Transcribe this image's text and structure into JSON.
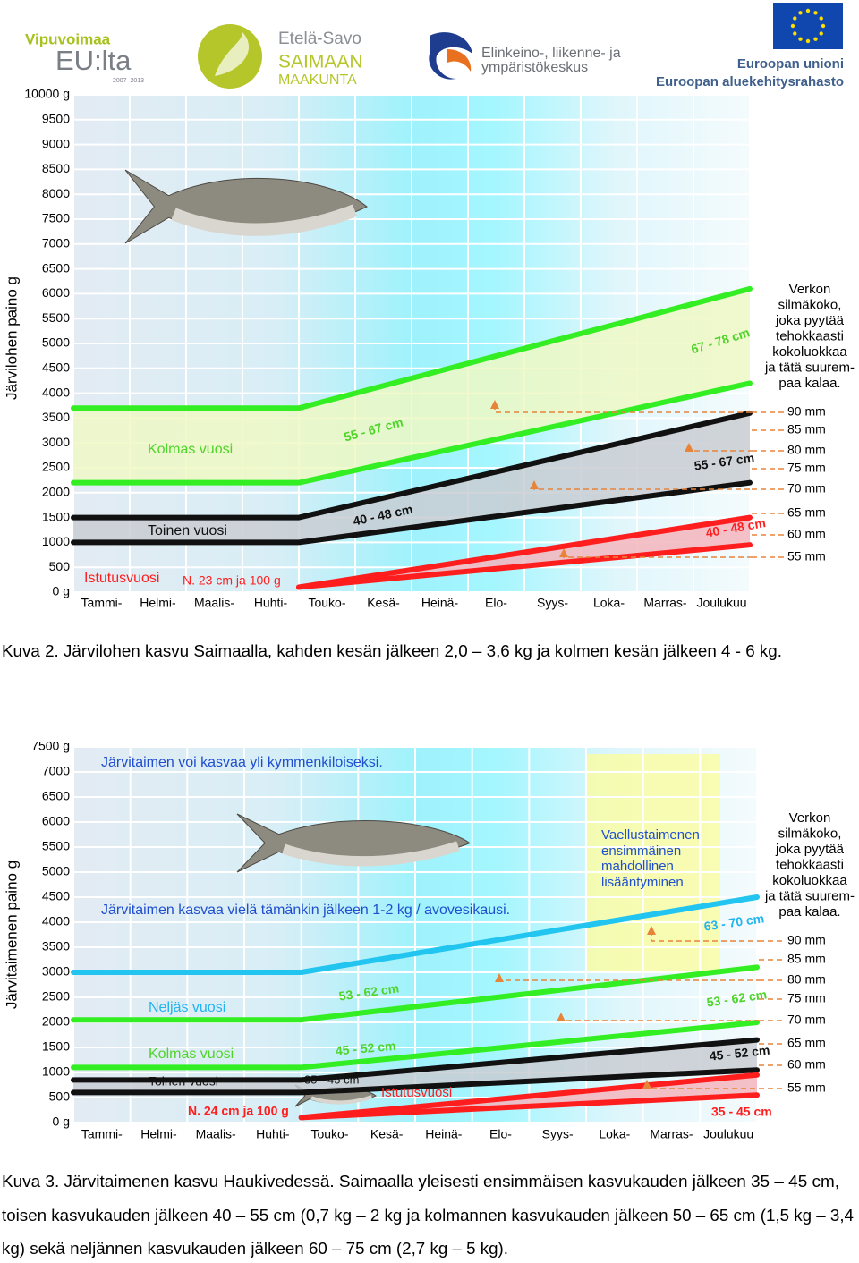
{
  "logos": {
    "vipuvoimaa": "Vipuvoimaa",
    "eu_lta": "EU:lta",
    "years": "2007–2013",
    "etela_savo": "Etelä-Savo",
    "saimaan": "SAIMAAN",
    "maakunta": "MAAKUNTA",
    "ely": [
      "Elinkeino-, liikenne- ja",
      "ympäristökeskus"
    ],
    "eu": [
      "Euroopan unioni",
      "Euroopan aluekehitysrahasto"
    ]
  },
  "chart_data": [
    {
      "type": "line",
      "y_label": "Järvilohen paino g",
      "ylim": [
        0,
        10000
      ],
      "yticks": [
        {
          "value": 0,
          "label": "0 g"
        },
        500,
        1000,
        1500,
        2000,
        2500,
        3000,
        3500,
        4000,
        4500,
        5000,
        5500,
        6000,
        6500,
        7000,
        7500,
        8000,
        8500,
        9000,
        9500,
        {
          "value": 10000,
          "label": "10000 g"
        }
      ],
      "xlim": [
        0,
        12
      ],
      "categories": [
        "Tammi-",
        "Helmi-",
        "Maalis-",
        "Huhti-",
        "Touko-",
        "Kesä-",
        "Heinä-",
        "Elo-",
        "Syys-",
        "Loka-",
        "Marras-",
        "Joulukuu"
      ],
      "grid": true,
      "series": [
        {
          "color": "#33ee22",
          "x": [
            0,
            4,
            12
          ],
          "values": [
            3700,
            3700,
            6100
          ],
          "band_color": "#eef8c4"
        },
        {
          "color": "#33ee22",
          "x": [
            0,
            4,
            12
          ],
          "values": [
            2200,
            2200,
            4200
          ]
        },
        {
          "color": "#111111",
          "x": [
            0,
            4,
            12
          ],
          "values": [
            1500,
            1500,
            3600
          ],
          "band_color": "#c9cdd2"
        },
        {
          "color": "#111111",
          "x": [
            0,
            4,
            12
          ],
          "values": [
            1000,
            1000,
            2200
          ]
        },
        {
          "color": "#ff1e1e",
          "x": [
            4,
            12
          ],
          "values": [
            100,
            1500
          ],
          "band_color": "#f4b5bd"
        },
        {
          "color": "#ff1e1e",
          "x": [
            4,
            12
          ],
          "values": [
            100,
            950
          ]
        }
      ],
      "annotations": [
        {
          "text": "Kolmas vuosi",
          "color": "#4fd42a"
        },
        {
          "text": "55 - 67 cm",
          "color": "#4fd42a"
        },
        {
          "text": "67 - 78 cm",
          "color": "#4fd42a"
        },
        {
          "text": "Toinen vuosi",
          "color": "#111111"
        },
        {
          "text": "40 - 48 cm",
          "color": "#111111"
        },
        {
          "text": "55 - 67 cm",
          "color": "#111111"
        },
        {
          "text": "Istutusvuosi",
          "color": "#ff1e1e"
        },
        {
          "text": "N. 23 cm ja 100 g",
          "color": "#ff1e1e"
        },
        {
          "text": "40 - 48 cm",
          "color": "#ff1e1e"
        }
      ],
      "mesh_title": [
        "Verkon",
        "silmäkoko,",
        "joka pyytää",
        "tehokkaasti",
        "kokoluokkaa",
        "ja tätä suurem-",
        "paa kalaa."
      ],
      "mesh_sizes": [
        "90 mm",
        "85 mm",
        "80 mm",
        "75 mm",
        "70 mm",
        "65 mm",
        "60 mm",
        "55 mm"
      ]
    },
    {
      "type": "line",
      "y_label": "Järvitaimenen paino g",
      "ylim": [
        0,
        7500
      ],
      "yticks": [
        {
          "value": 0,
          "label": "0 g"
        },
        500,
        1000,
        1500,
        2000,
        2500,
        3000,
        3500,
        4000,
        4500,
        5000,
        5500,
        6000,
        6500,
        7000,
        {
          "value": 7500,
          "label": "7500 g"
        }
      ],
      "xlim": [
        0,
        12
      ],
      "categories": [
        "Tammi-",
        "Helmi-",
        "Maalis-",
        "Huhti-",
        "Touko-",
        "Kesä-",
        "Heinä-",
        "Elo-",
        "Syys-",
        "Loka-",
        "Marras-",
        "Joulukuu"
      ],
      "grid": true,
      "series": [
        {
          "color": "#22c4f0",
          "x": [
            0,
            4,
            12
          ],
          "values": [
            3000,
            3000,
            4500
          ]
        },
        {
          "color": "#33ee22",
          "x": [
            0,
            4,
            12
          ],
          "values": [
            2050,
            2050,
            3100
          ]
        },
        {
          "color": "#33ee22",
          "x": [
            0,
            4,
            12
          ],
          "values": [
            1100,
            1100,
            2000
          ]
        },
        {
          "color": "#111111",
          "x": [
            0,
            4,
            12
          ],
          "values": [
            850,
            850,
            1650
          ],
          "band_color": "#c9cdd2"
        },
        {
          "color": "#111111",
          "x": [
            0,
            4,
            12
          ],
          "values": [
            600,
            600,
            1050
          ]
        },
        {
          "color": "#ff1e1e",
          "x": [
            4,
            12
          ],
          "values": [
            100,
            950
          ],
          "band_color": "#f4b5bd"
        },
        {
          "color": "#ff1e1e",
          "x": [
            4,
            12
          ],
          "values": [
            100,
            550
          ]
        }
      ],
      "annotations": [
        {
          "text": "Järvitaimen voi kasvaa yli kymmenkiloiseksi.",
          "color": "#1f4fd0"
        },
        {
          "text": "Vaellustaimenen",
          "color": "#1f4fd0"
        },
        {
          "text": "ensimmäinen",
          "color": "#1f4fd0"
        },
        {
          "text": "mahdollinen",
          "color": "#1f4fd0"
        },
        {
          "text": "lisääntyminen",
          "color": "#1f4fd0"
        },
        {
          "text": "Järvitaimen kasvaa vielä tämänkin jälkeen 1-2 kg / avovesikausi.",
          "color": "#1f4fd0"
        },
        {
          "text": "63 - 70 cm",
          "color": "#22b4ee"
        },
        {
          "text": "Neljäs vuosi",
          "color": "#22b4ee"
        },
        {
          "text": "53 - 62 cm",
          "color": "#4fd42a"
        },
        {
          "text": "53 - 62 cm",
          "color": "#4fd42a"
        },
        {
          "text": "Kolmas vuosi",
          "color": "#4fd42a"
        },
        {
          "text": "45 - 52 cm",
          "color": "#4fd42a"
        },
        {
          "text": "Toinen vuosi",
          "color": "#111111"
        },
        {
          "text": "35 - 45 cm",
          "color": "#111111"
        },
        {
          "text": "45 - 52 cm",
          "color": "#111111"
        },
        {
          "text": "Istutusvuosi",
          "color": "#ff1e1e"
        },
        {
          "text": "N. 24 cm ja 100 g",
          "color": "#ff1e1e"
        },
        {
          "text": "35 - 45 cm",
          "color": "#ff1e1e"
        }
      ],
      "mesh_title": [
        "Verkon",
        "silmäkoko,",
        "joka pyytää",
        "tehokkaasti",
        "kokoluokkaa",
        "ja tätä suurem-",
        "paa kalaa."
      ],
      "mesh_sizes": [
        "90 mm",
        "85 mm",
        "80 mm",
        "75 mm",
        "70 mm",
        "65 mm",
        "60 mm",
        "55 mm"
      ]
    }
  ],
  "captions": [
    [
      "Kuva 2. Järvilohen kasvu Saimaalla, kahden kesän jälkeen 2,0 – 3,6 kg ja kolmen kesän jälkeen 4 - 6 kg."
    ],
    [
      "Kuva 3. Järvitaimenen kasvu Haukivedessä. Saimaalla yleisesti ensimmäisen kasvukauden jälkeen 35 – 45 cm,",
      "toisen kasvukauden jälkeen 40 – 55 cm (0,7 kg – 2 kg ja kolmannen kasvukauden jälkeen 50 – 65 cm (1,5 kg – 3,4",
      "kg) sekä neljännen kasvukauden jälkeen 60 – 75 cm (2,7 kg – 5 kg)."
    ]
  ]
}
